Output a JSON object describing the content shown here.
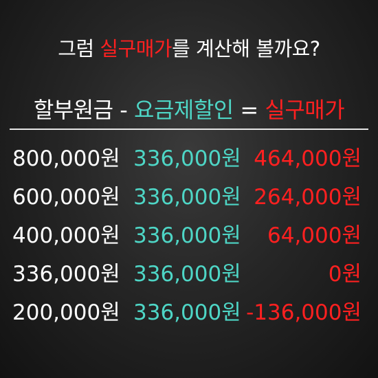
{
  "heading": {
    "prefix": "그럼 ",
    "highlight": "실구매가",
    "suffix": "를 계산해 볼까요?"
  },
  "formula": {
    "term1": "할부원금",
    "minus": " - ",
    "term2": "요금제할인",
    "equals": " = ",
    "term3": "실구매가"
  },
  "rows": [
    {
      "principal": "800,000원",
      "discount": "336,000원",
      "actual": "464,000원"
    },
    {
      "principal": "600,000원",
      "discount": "336,000원",
      "actual": "264,000원"
    },
    {
      "principal": "400,000원",
      "discount": "336,000원",
      "actual": "64,000원"
    },
    {
      "principal": "336,000원",
      "discount": "336,000원",
      "actual": "0원"
    },
    {
      "principal": "200,000원",
      "discount": "336,000원",
      "actual": "-136,000원"
    }
  ],
  "colors": {
    "background": "#262626",
    "text": "#ffffff",
    "discount": "#4ed6c6",
    "result": "#ff2020"
  }
}
